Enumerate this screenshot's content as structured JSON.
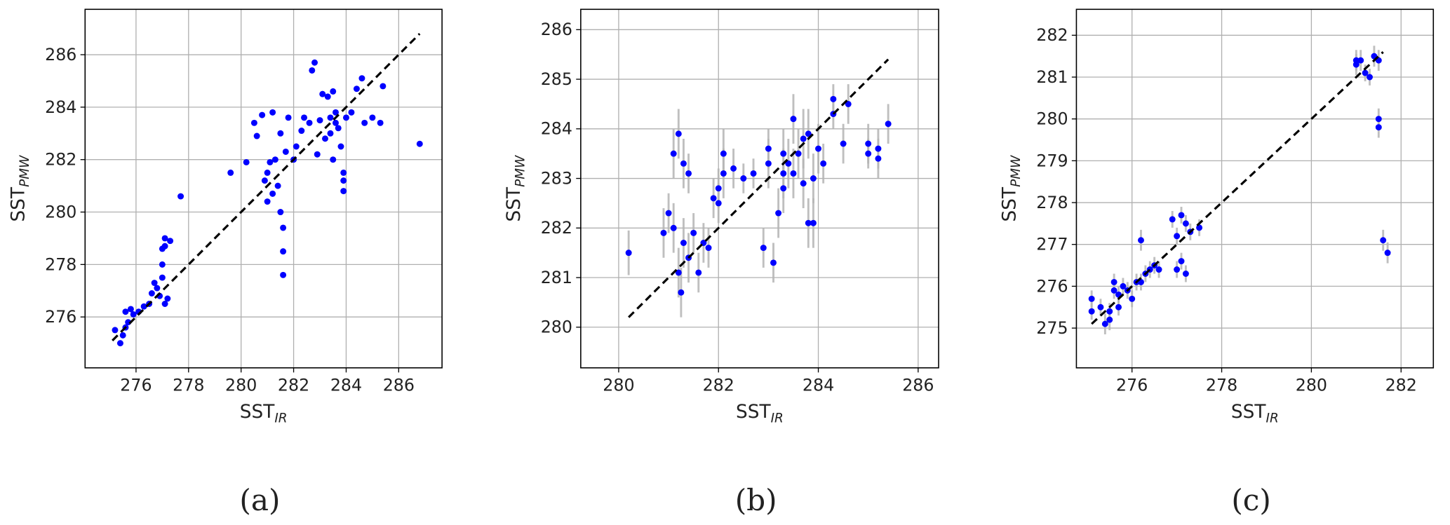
{
  "chart_data": [
    {
      "type": "scatter",
      "caption": "(a)",
      "xlabel": "SST",
      "xlabel_sub": "IR",
      "ylabel": "SST",
      "ylabel_sub": "PMW",
      "xlim": [
        274.06,
        287.65
      ],
      "ylim": [
        274.06,
        287.73
      ],
      "xticks": [
        276,
        278,
        280,
        282,
        284,
        286
      ],
      "yticks": [
        276,
        278,
        280,
        282,
        284,
        286
      ],
      "grid": true,
      "series": [
        {
          "color": "#0000ff",
          "x": [
            275.2,
            275.4,
            275.5,
            275.6,
            275.7,
            275.6,
            275.8,
            275.9,
            276.1,
            276.3,
            276.5,
            276.6,
            276.7,
            276.8,
            276.9,
            277.0,
            277.0,
            277.1,
            277.1,
            277.2,
            277.0,
            277.1,
            277.3,
            277.7,
            279.6,
            280.2,
            280.5,
            280.6,
            280.8,
            280.9,
            281.0,
            281.0,
            281.1,
            281.2,
            281.2,
            281.3,
            281.4,
            281.5,
            281.5,
            281.6,
            281.6,
            281.6,
            281.7,
            281.8,
            282.0,
            282.1,
            282.3,
            282.4,
            282.6,
            282.7,
            282.8,
            282.9,
            283.0,
            283.1,
            283.2,
            283.3,
            283.4,
            283.5,
            283.5,
            283.6,
            283.7,
            283.8,
            283.9,
            283.9,
            284.0,
            284.2,
            284.4,
            284.6,
            284.7,
            285.0,
            285.3,
            285.4,
            286.8,
            283.9,
            283.4,
            283.6
          ],
          "y": [
            275.5,
            275.0,
            275.3,
            275.6,
            275.8,
            276.2,
            276.3,
            276.1,
            276.2,
            276.4,
            276.5,
            276.9,
            277.3,
            277.1,
            276.8,
            277.5,
            278.0,
            278.7,
            276.5,
            276.7,
            278.6,
            279.0,
            278.9,
            280.6,
            281.5,
            281.9,
            283.4,
            282.9,
            283.7,
            281.2,
            281.5,
            280.4,
            281.9,
            280.7,
            283.8,
            282.0,
            281.0,
            280.0,
            283.0,
            279.4,
            278.5,
            277.6,
            282.3,
            283.6,
            282.0,
            282.5,
            283.1,
            283.6,
            283.4,
            285.4,
            285.7,
            282.2,
            283.5,
            284.5,
            282.8,
            284.4,
            283.0,
            284.6,
            282.0,
            283.8,
            283.2,
            282.5,
            281.5,
            280.8,
            283.6,
            283.8,
            284.7,
            285.1,
            283.4,
            283.6,
            283.4,
            284.8,
            282.6,
            281.2,
            283.6,
            283.4
          ]
        }
      ],
      "reference_line": {
        "color": "#000000",
        "style": "dashed",
        "x": [
          275.1,
          286.8
        ],
        "y": [
          275.1,
          286.8
        ]
      }
    },
    {
      "type": "scatter",
      "caption": "(b)",
      "xlabel": "SST",
      "xlabel_sub": "IR",
      "ylabel": "SST",
      "ylabel_sub": "PMW",
      "xlim": [
        279.24,
        286.41
      ],
      "ylim": [
        279.18,
        286.41
      ],
      "xticks": [
        280,
        282,
        284,
        286
      ],
      "yticks": [
        280,
        281,
        282,
        283,
        284,
        285,
        286
      ],
      "grid": true,
      "series": [
        {
          "color": "#0000ff",
          "error_color": "#b4b4b4",
          "x": [
            280.2,
            280.9,
            281.0,
            281.1,
            281.1,
            281.2,
            281.2,
            281.25,
            281.3,
            281.3,
            281.4,
            281.4,
            281.5,
            281.6,
            281.7,
            281.8,
            281.9,
            282.0,
            282.0,
            282.1,
            282.1,
            282.3,
            282.5,
            282.7,
            282.9,
            283.0,
            283.0,
            283.1,
            283.2,
            283.3,
            283.3,
            283.5,
            283.5,
            283.6,
            283.7,
            283.7,
            283.8,
            283.9,
            283.9,
            284.0,
            284.1,
            284.3,
            284.3,
            284.5,
            284.6,
            285.0,
            285.0,
            285.2,
            285.2,
            285.4,
            283.4,
            283.8,
            283.3
          ],
          "y": [
            281.5,
            281.9,
            282.3,
            283.5,
            282.0,
            283.9,
            281.1,
            280.7,
            281.7,
            283.3,
            281.4,
            283.1,
            281.9,
            281.1,
            281.7,
            281.6,
            282.6,
            282.8,
            282.5,
            283.1,
            283.5,
            283.2,
            283.0,
            283.1,
            281.6,
            283.6,
            283.3,
            281.3,
            282.3,
            282.8,
            283.5,
            284.2,
            283.1,
            283.5,
            282.9,
            283.8,
            282.1,
            282.1,
            283.0,
            283.6,
            283.3,
            284.6,
            284.3,
            283.7,
            284.5,
            283.7,
            283.5,
            283.4,
            283.6,
            284.1,
            283.3,
            283.9,
            283.1
          ],
          "errors": [
            0.45,
            0.5,
            0.4,
            0.5,
            0.5,
            0.5,
            0.5,
            0.5,
            0.5,
            0.5,
            0.5,
            0.4,
            0.4,
            0.4,
            0.4,
            0.4,
            0.4,
            0.4,
            0.4,
            0.5,
            0.5,
            0.4,
            0.3,
            0.3,
            0.4,
            0.4,
            0.5,
            0.4,
            0.5,
            0.5,
            0.5,
            0.5,
            0.5,
            0.5,
            0.5,
            0.6,
            0.5,
            0.5,
            0.5,
            0.5,
            0.4,
            0.3,
            0.3,
            0.4,
            0.4,
            0.4,
            0.3,
            0.4,
            0.4,
            0.4,
            0.5,
            0.5,
            0.5
          ]
        }
      ],
      "reference_line": {
        "color": "#000000",
        "style": "dashed",
        "x": [
          280.2,
          285.4
        ],
        "y": [
          280.2,
          285.4
        ]
      }
    },
    {
      "type": "scatter",
      "caption": "(c)",
      "xlabel": "SST",
      "xlabel_sub": "IR",
      "ylabel": "SST",
      "ylabel_sub": "PMW",
      "xlim": [
        274.76,
        282.72
      ],
      "ylim": [
        274.05,
        282.62
      ],
      "xticks": [
        276,
        278,
        280,
        282
      ],
      "yticks": [
        275,
        276,
        277,
        278,
        279,
        280,
        281,
        282
      ],
      "grid": true,
      "series": [
        {
          "color": "#0000ff",
          "error_color": "#b4b4b4",
          "x": [
            275.1,
            275.1,
            275.3,
            275.4,
            275.5,
            275.5,
            275.6,
            275.6,
            275.7,
            275.7,
            275.8,
            275.9,
            276.0,
            276.1,
            276.2,
            276.2,
            276.3,
            276.4,
            276.5,
            276.6,
            276.9,
            277.0,
            277.0,
            277.1,
            277.1,
            277.2,
            277.2,
            277.3,
            277.5,
            281.0,
            281.0,
            281.1,
            281.2,
            281.3,
            281.4,
            281.5,
            281.5,
            281.6,
            281.7,
            281.5
          ],
          "y": [
            275.4,
            275.7,
            275.5,
            275.1,
            275.2,
            275.4,
            275.9,
            276.1,
            275.5,
            275.8,
            276.0,
            275.9,
            275.7,
            276.1,
            276.1,
            277.1,
            276.3,
            276.4,
            276.5,
            276.4,
            277.6,
            276.4,
            277.2,
            277.7,
            276.6,
            277.5,
            276.3,
            277.3,
            277.4,
            281.3,
            281.4,
            281.4,
            281.1,
            281.0,
            281.5,
            280.0,
            279.8,
            277.1,
            276.8,
            281.4
          ],
          "errors": [
            0.2,
            0.2,
            0.2,
            0.25,
            0.25,
            0.2,
            0.2,
            0.2,
            0.2,
            0.2,
            0.2,
            0.2,
            0.2,
            0.2,
            0.2,
            0.25,
            0.2,
            0.2,
            0.2,
            0.2,
            0.2,
            0.2,
            0.2,
            0.2,
            0.2,
            0.2,
            0.2,
            0.2,
            0.2,
            0.25,
            0.25,
            0.25,
            0.2,
            0.2,
            0.25,
            0.25,
            0.25,
            0.25,
            0.25,
            0.25
          ]
        }
      ],
      "reference_line": {
        "color": "#000000",
        "style": "dashed",
        "x": [
          275.1,
          281.6
        ],
        "y": [
          275.1,
          281.6
        ]
      }
    }
  ]
}
